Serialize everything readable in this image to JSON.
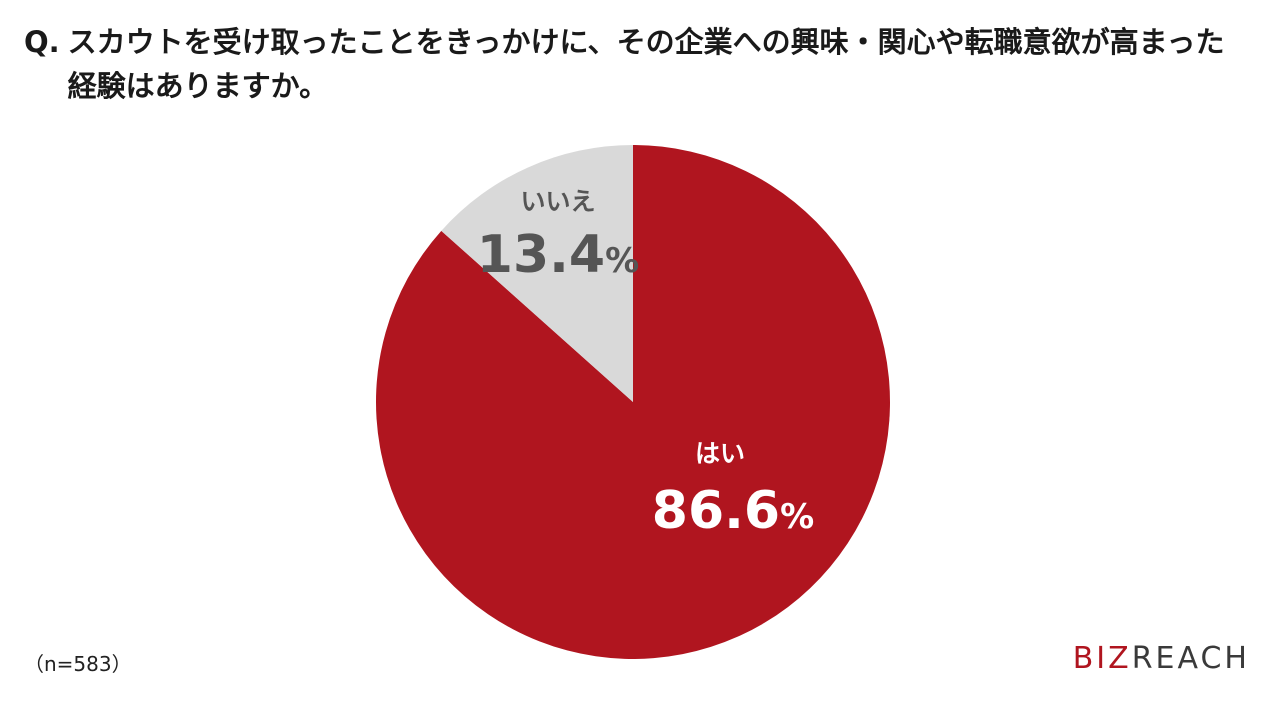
{
  "question": {
    "prefix": "Q.",
    "text": "スカウトを受け取ったことをきっかけに、その企業への興味・関心や転職意欲が高まった経験はありますか。"
  },
  "chart_data": {
    "type": "pie",
    "slices": [
      {
        "label": "はい",
        "value": 86.6,
        "display": "86.6",
        "unit": "%",
        "color": "#b0151f",
        "text_color": "#ffffff"
      },
      {
        "label": "いいえ",
        "value": 13.4,
        "display": "13.4",
        "unit": "%",
        "color": "#d9d9d9",
        "text_color": "#555555"
      }
    ],
    "start": "12 o'clock",
    "direction": "clockwise"
  },
  "sample_size": "（n=583）",
  "logo": {
    "biz": "BIZ",
    "reach": "REACH"
  }
}
